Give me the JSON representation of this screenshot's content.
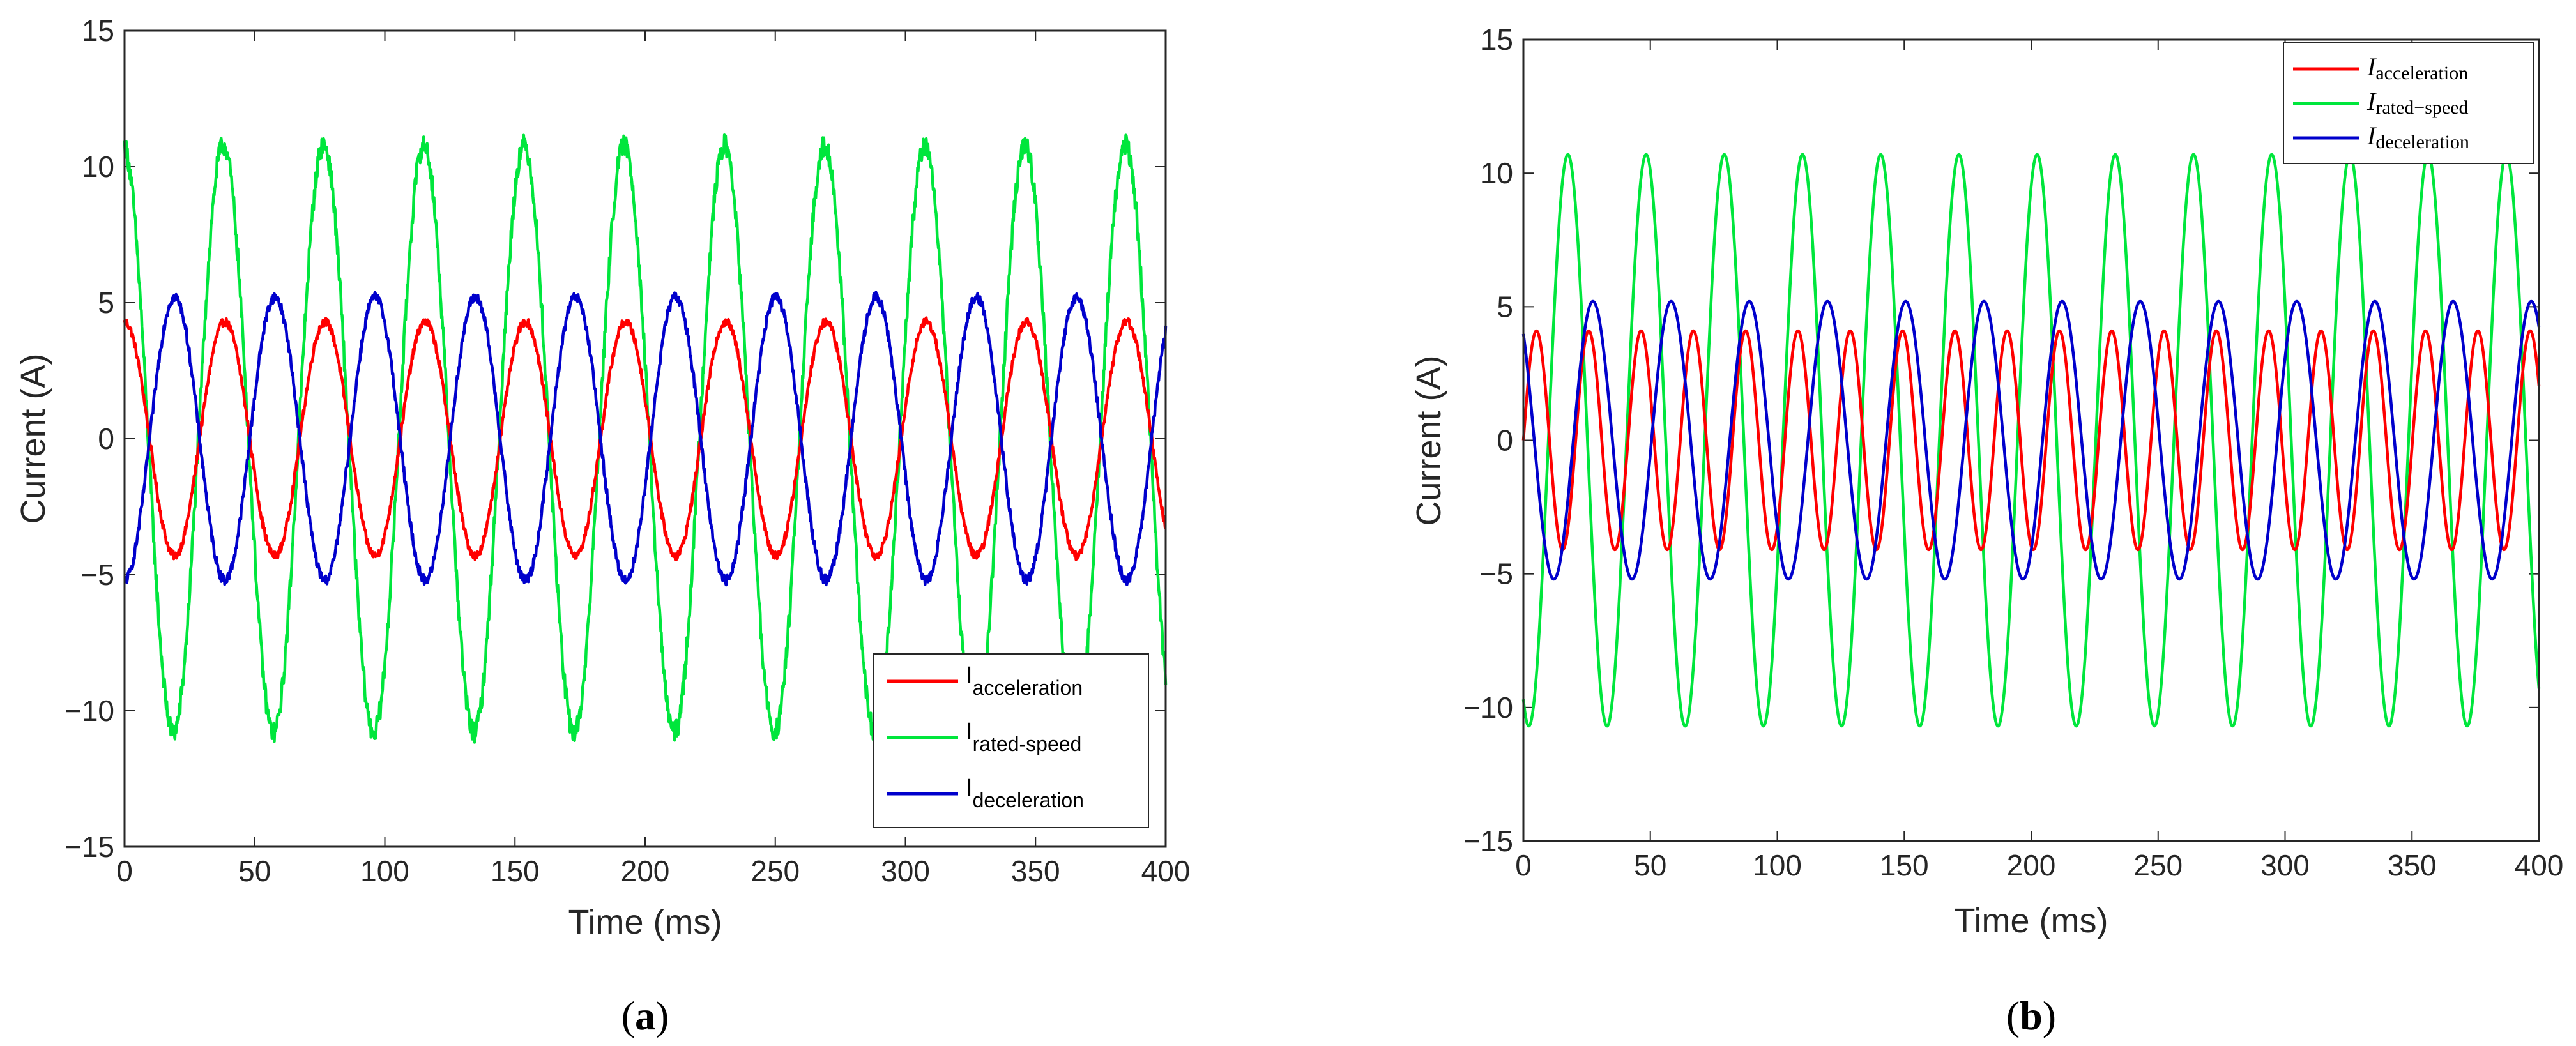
{
  "chart_data": [
    {
      "type": "line",
      "panel_label": "a",
      "xlabel": "Time (ms)",
      "ylabel": "Current (A)",
      "xlim": [
        0,
        400
      ],
      "ylim": [
        -15,
        15
      ],
      "xticks": [
        0,
        50,
        100,
        150,
        200,
        250,
        300,
        350,
        400
      ],
      "yticks": [
        15,
        10,
        5,
        0,
        -5,
        -10,
        -15
      ],
      "ytick_labels": [
        "15",
        "10",
        "5",
        "0",
        "−5",
        "−10",
        "−15"
      ],
      "legend_position": "bottom-right",
      "noisy": true,
      "series": [
        {
          "name": "acceleration",
          "legend_main": "I",
          "legend_sub": "acceleration",
          "color": "#ff0000",
          "amplitude": 4.3,
          "period_ms": 38.5,
          "phase_deg": 90
        },
        {
          "name": "rated-speed",
          "legend_main": "I",
          "legend_sub": "rated-speed",
          "color": "#00e63c",
          "amplitude": 10.8,
          "period_ms": 38.5,
          "phase_deg": 95
        },
        {
          "name": "deceleration",
          "legend_main": "I",
          "legend_sub": "deceleration",
          "color": "#0000cc",
          "amplitude": 5.2,
          "period_ms": 38.5,
          "phase_deg": -90
        }
      ]
    },
    {
      "type": "line",
      "panel_label": "b",
      "xlabel": "Time (ms)",
      "ylabel": "Current (A)",
      "xlim": [
        0,
        400
      ],
      "ylim": [
        -15,
        15
      ],
      "xticks": [
        0,
        50,
        100,
        150,
        200,
        250,
        300,
        350,
        400
      ],
      "yticks": [
        15,
        10,
        5,
        0,
        -5,
        -10,
        -15
      ],
      "ytick_labels": [
        "15",
        "10",
        "5",
        "0",
        "−5",
        "−10",
        "−15"
      ],
      "legend_position": "top-right",
      "noisy": false,
      "series": [
        {
          "name": "acceleration",
          "legend_main": "I",
          "legend_sub": "acceleration",
          "color": "#ff0000",
          "amplitude": 4.1,
          "period_ms": 20.6,
          "phase_deg": 0
        },
        {
          "name": "rated-speed",
          "legend_main": "I",
          "legend_sub": "rated−speed",
          "color": "#00e63c",
          "amplitude": 10.7,
          "period_ms": 30.8,
          "phase_deg": -115
        },
        {
          "name": "deceleration",
          "legend_main": "I",
          "legend_sub": "deceleration",
          "color": "#0000cc",
          "amplitude": 5.2,
          "period_ms": 30.8,
          "phase_deg": 130
        }
      ]
    }
  ],
  "captions": [
    {
      "open": "(",
      "label": "a",
      "close": ")"
    },
    {
      "open": "(",
      "label": "b",
      "close": ")"
    }
  ]
}
